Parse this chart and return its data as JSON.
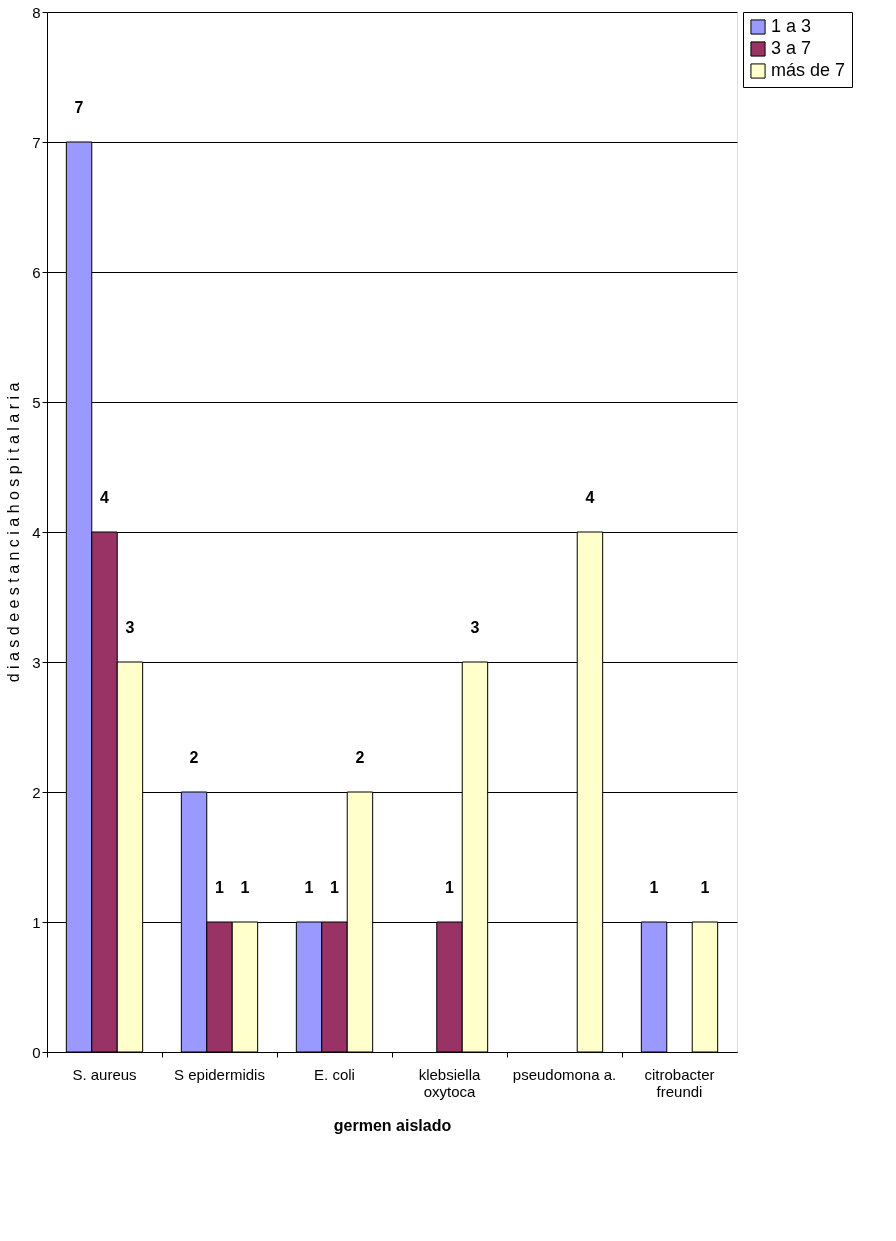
{
  "chart_data": {
    "type": "bar",
    "xlabel": "germen aislado",
    "ylabel": "d i a s  d e  e s t a n c i a  h o s p i t a l a r i a",
    "categories": [
      "S. aureus",
      "S epidermidis",
      "E. coli",
      "klebsiella oxytoca",
      "pseudomona a.",
      "citrobacter freundi"
    ],
    "series": [
      {
        "name": "1 a 3",
        "color": "#9999ff",
        "values": [
          7,
          2,
          1,
          null,
          null,
          1
        ]
      },
      {
        "name": "3 a 7",
        "color": "#993366",
        "values": [
          4,
          1,
          1,
          1,
          null,
          null
        ]
      },
      {
        "name": "más de 7",
        "color": "#ffffcc",
        "values": [
          3,
          1,
          2,
          3,
          4,
          1
        ]
      }
    ],
    "ylim": [
      0,
      8
    ],
    "yticks": [
      0,
      1,
      2,
      3,
      4,
      5,
      6,
      7,
      8
    ],
    "grid": "y",
    "legend": "right",
    "data_labels": true
  }
}
